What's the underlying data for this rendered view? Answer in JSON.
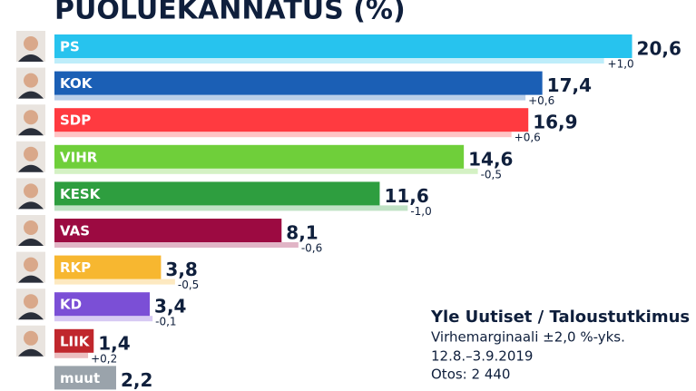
{
  "chart_data": {
    "type": "bar",
    "title": "PUOLUEKANNATUS (%)",
    "categories": [
      "PS",
      "KOK",
      "SDP",
      "VIHR",
      "KESK",
      "VAS",
      "RKP",
      "KD",
      "LIIK",
      "muut"
    ],
    "values": [
      20.6,
      17.4,
      16.9,
      14.6,
      11.6,
      8.1,
      3.8,
      3.4,
      1.4,
      2.2
    ],
    "value_labels": [
      "20,6",
      "17,4",
      "16,9",
      "14,6",
      "11,6",
      "8,1",
      "3,8",
      "3,4",
      "1,4",
      "2,2"
    ],
    "colors": [
      "#27c3ee",
      "#1b5fb5",
      "#ff3a40",
      "#6fcf3a",
      "#2e9e3f",
      "#9c0a41",
      "#f7b730",
      "#7b4fd6",
      "#c0272d",
      "#9aa3ab"
    ],
    "changes": [
      1.0,
      0.6,
      0.6,
      -0.5,
      -1.0,
      -0.6,
      -0.5,
      -0.1,
      0.2,
      null
    ],
    "change_labels": [
      "+1,0",
      "+0,6",
      "+0,6",
      "-0,5",
      "-1,0",
      "-0,6",
      "-0,5",
      "-0,1",
      "+0,2",
      null
    ],
    "annotations": [
      "Yle Uutiset / Taloustutkimus",
      "Virhemarginaali ±2,0 %-yks.",
      "12.8.–3.9.2019",
      "Otos: 2 440"
    ]
  }
}
